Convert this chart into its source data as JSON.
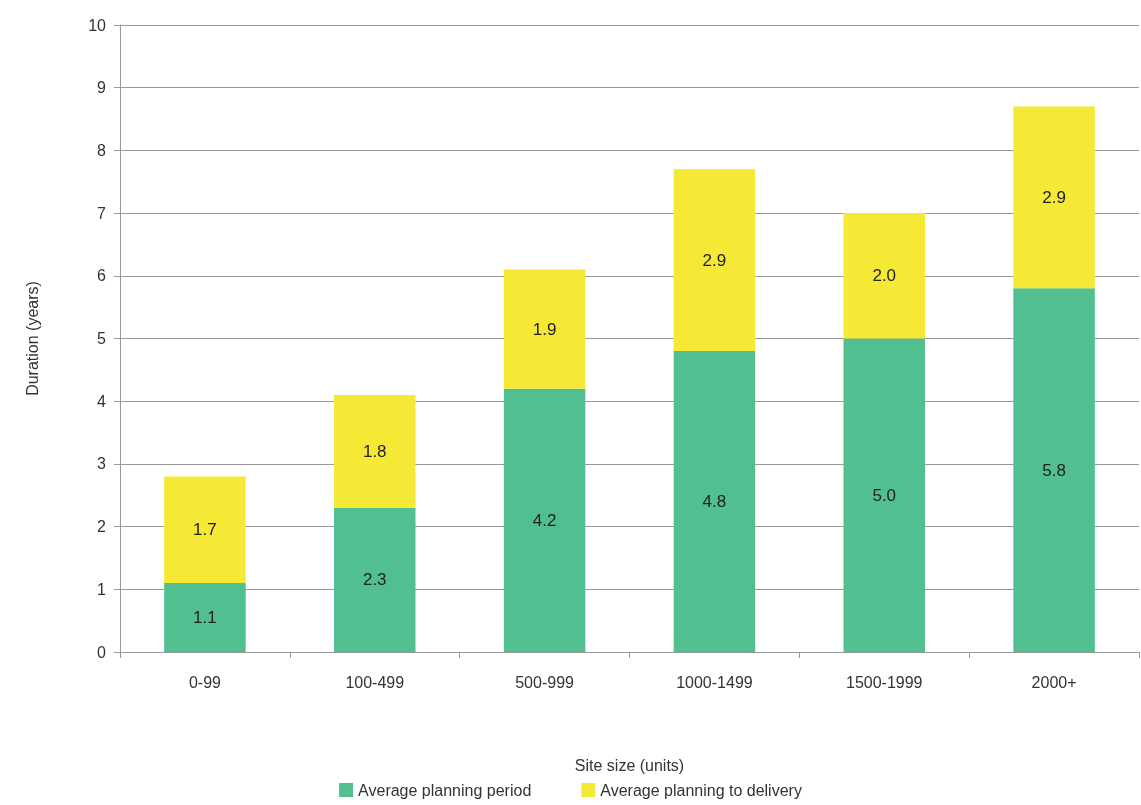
{
  "chart_data": {
    "type": "bar",
    "stacked": true,
    "xlabel": "Site size (units)",
    "ylabel": "Duration (years)",
    "categories": [
      "0-99",
      "100-499",
      "500-999",
      "1000-1499",
      "1500-1999",
      "2000+"
    ],
    "series": [
      {
        "name": "Average planning period",
        "color": "#52bf90",
        "values": [
          1.1,
          2.3,
          4.2,
          4.8,
          5.0,
          5.8
        ],
        "value_labels": [
          "1.1",
          "2.3",
          "4.2",
          "4.8",
          "5.0",
          "5.8"
        ]
      },
      {
        "name": "Average planning to delivery",
        "color": "#f5e935",
        "values": [
          1.7,
          1.8,
          1.9,
          2.9,
          2.0,
          2.9
        ],
        "value_labels": [
          "1.7",
          "1.8",
          "1.9",
          "2.9",
          "2.0",
          "2.9"
        ]
      }
    ],
    "ylim": [
      0,
      10
    ],
    "yticks": [
      0,
      1,
      2,
      3,
      4,
      5,
      6,
      7,
      8,
      9,
      10
    ],
    "grid": "y",
    "legend": "bottom"
  }
}
